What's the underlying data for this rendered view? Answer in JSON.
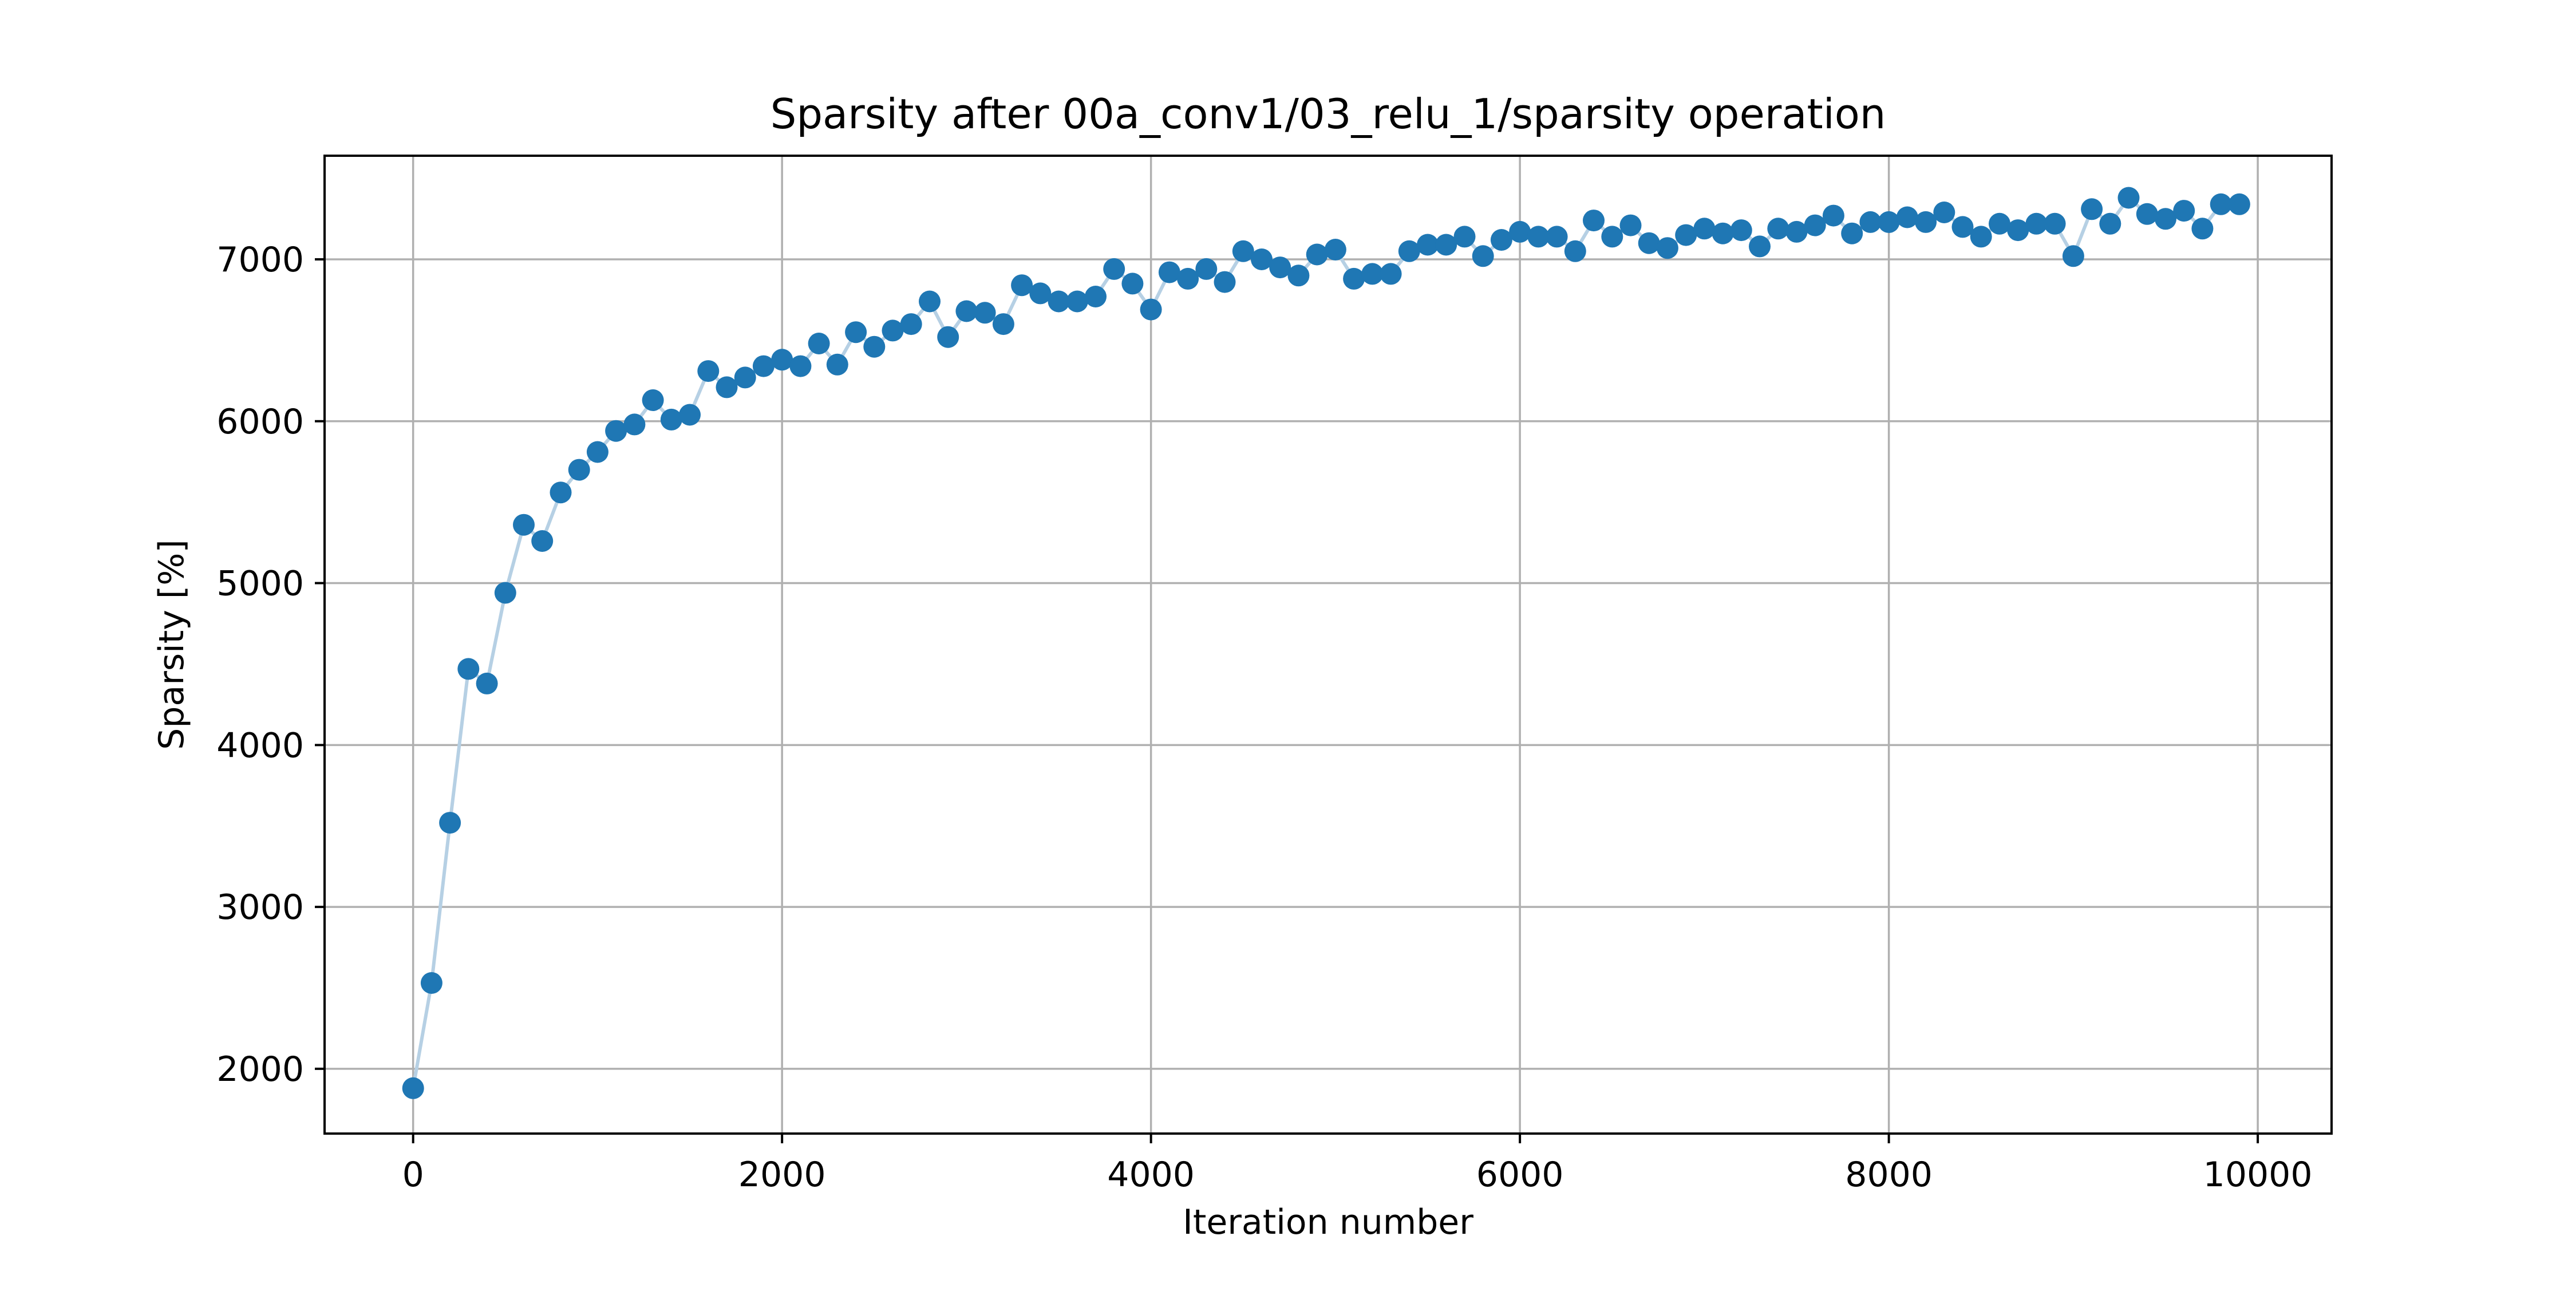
{
  "chart_data": {
    "type": "line",
    "title": "Sparsity after 00a_conv1/03_relu_1/sparsity operation",
    "xlabel": "Iteration number",
    "ylabel": "Sparsity [%]",
    "xlim": [
      -480,
      10400
    ],
    "ylim": [
      1600,
      7640
    ],
    "grid": true,
    "xticks": [
      0,
      2000,
      4000,
      6000,
      8000,
      10000
    ],
    "yticks": [
      2000,
      3000,
      4000,
      5000,
      6000,
      7000
    ],
    "xtick_labels": [
      "0",
      "2000",
      "4000",
      "6000",
      "8000",
      "10000"
    ],
    "ytick_labels": [
      "2000",
      "3000",
      "4000",
      "5000",
      "6000",
      "7000"
    ],
    "colors": {
      "marker": "#1f77b4",
      "line": "#b6d0e4",
      "grid": "#b0b0b0",
      "frame": "#000000"
    },
    "series": [
      {
        "x": [
          0,
          100,
          200,
          300,
          400,
          500,
          600,
          700,
          800,
          900,
          1000,
          1100,
          1200,
          1300,
          1400,
          1500,
          1600,
          1700,
          1800,
          1900,
          2000,
          2100,
          2200,
          2300,
          2400,
          2500,
          2600,
          2700,
          2800,
          2900,
          3000,
          3100,
          3200,
          3300,
          3400,
          3500,
          3600,
          3700,
          3800,
          3900,
          4000,
          4100,
          4200,
          4300,
          4400,
          4500,
          4600,
          4700,
          4800,
          4900,
          5000,
          5100,
          5200,
          5300,
          5400,
          5500,
          5600,
          5700,
          5800,
          5900,
          6000,
          6100,
          6200,
          6300,
          6400,
          6500,
          6600,
          6700,
          6800,
          6900,
          7000,
          7100,
          7200,
          7300,
          7400,
          7500,
          7600,
          7700,
          7800,
          7900,
          8000,
          8100,
          8200,
          8300,
          8400,
          8500,
          8600,
          8700,
          8800,
          8900,
          9000,
          9100,
          9200,
          9300,
          9400,
          9500,
          9600,
          9700,
          9800,
          9900
        ],
        "y": [
          1880,
          2530,
          3520,
          4470,
          4380,
          4940,
          5360,
          5260,
          5560,
          5700,
          5810,
          5940,
          5980,
          6130,
          6010,
          6040,
          6310,
          6210,
          6270,
          6340,
          6380,
          6340,
          6480,
          6350,
          6550,
          6460,
          6560,
          6600,
          6740,
          6520,
          6680,
          6670,
          6600,
          6840,
          6790,
          6740,
          6740,
          6770,
          6940,
          6850,
          6690,
          6920,
          6880,
          6940,
          6860,
          7050,
          7000,
          6950,
          6900,
          7030,
          7060,
          6880,
          6910,
          6910,
          7050,
          7090,
          7090,
          7140,
          7020,
          7120,
          7170,
          7140,
          7140,
          7050,
          7240,
          7140,
          7210,
          7100,
          7070,
          7150,
          7190,
          7160,
          7180,
          7080,
          7190,
          7170,
          7210,
          7270,
          7160,
          7230,
          7230,
          7260,
          7230,
          7290,
          7200,
          7140,
          7220,
          7180,
          7220,
          7220,
          7020,
          7310,
          7220,
          7380,
          7280,
          7250,
          7300,
          7190,
          7340,
          7340
        ]
      }
    ]
  }
}
